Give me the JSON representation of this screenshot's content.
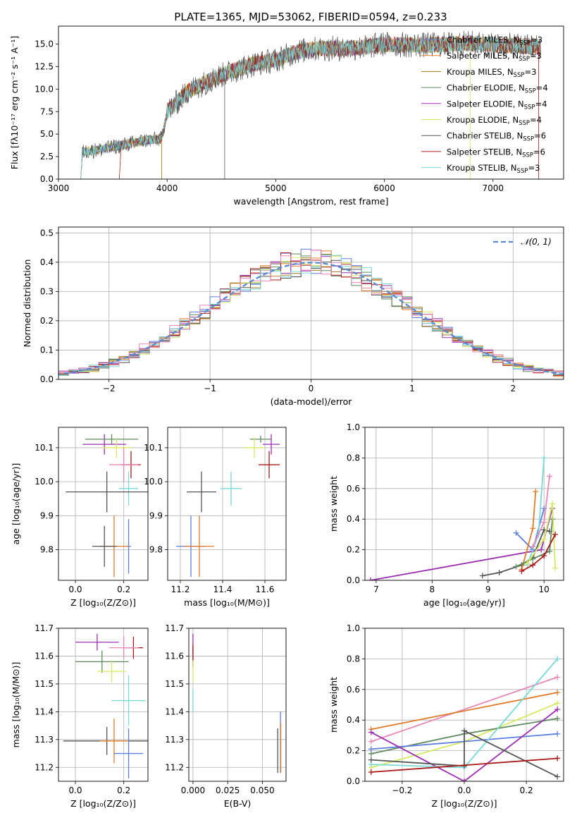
{
  "figure": {
    "title": "PLATE=1365, MJD=53062, FIBERID=0594, z=0.233"
  },
  "colors": {
    "chabrier_miles": "#5f7fe0",
    "salpeter_miles": "#e07b2a",
    "kroupa_miles": "#a0781e",
    "chabrier_elodie": "#5f8a5f",
    "salpeter_elodie": "#9a30b0",
    "kroupa_elodie": "#d8e860",
    "chabrier_stelib": "#555555",
    "salpeter_stelib": "#aa1a1a",
    "kroupa_stelib": "#7ad8d8",
    "pink": "#e888b8",
    "normal": "#5a8ad0"
  },
  "chart_data": [
    {
      "type": "line",
      "name": "spectrum",
      "xlabel": "wavelength [Angstrom, rest frame]",
      "ylabel": "Flux [fλ10⁻¹⁷ erg cm⁻² s⁻¹ A⁻¹]",
      "xlim": [
        3000,
        7650
      ],
      "ylim": [
        0,
        17
      ],
      "xticks": [
        3000,
        4000,
        5000,
        6000,
        7000
      ],
      "xtick_labels": [
        "3000",
        "4000",
        "5000",
        "6000",
        "7000"
      ],
      "yticks": [
        0,
        2.5,
        5,
        7.5,
        10,
        12.5,
        15
      ],
      "ytick_labels": [
        "0.0",
        "2.5",
        "5.0",
        "7.5",
        "10.0",
        "12.5",
        "15.0"
      ],
      "continuum": {
        "x": [
          3210,
          3400,
          3600,
          3800,
          3950,
          4000,
          4200,
          4400,
          4600,
          4800,
          5000,
          5200,
          5400,
          5600,
          5800,
          6000,
          6200,
          6400,
          6600,
          6800,
          7000,
          7200,
          7400
        ],
        "y": [
          3.0,
          3.3,
          3.8,
          4.3,
          4.5,
          7.5,
          9.8,
          11.0,
          12.0,
          12.8,
          13.2,
          14.2,
          14.5,
          14.5,
          14.6,
          15.0,
          14.9,
          14.9,
          15.0,
          15.1,
          14.9,
          14.8,
          14.7
        ]
      },
      "legend": [
        {
          "label": "Chabrier MILES, N",
          "sub": "SSP",
          "suffix": "=3"
        },
        {
          "label": "Salpeter MILES, N",
          "sub": "SSP",
          "suffix": "=3"
        },
        {
          "label": "Kroupa MILES, N",
          "sub": "SSP",
          "suffix": "=3"
        },
        {
          "label": "Chabrier ELODIE, N",
          "sub": "SSP",
          "suffix": "=4"
        },
        {
          "label": "Salpeter ELODIE, N",
          "sub": "SSP",
          "suffix": "=4"
        },
        {
          "label": "Kroupa ELODIE, N",
          "sub": "SSP",
          "suffix": "=4"
        },
        {
          "label": "Chabrier STELIB, N",
          "sub": "SSP",
          "suffix": "=6"
        },
        {
          "label": "Salpeter STELIB, N",
          "sub": "SSP",
          "suffix": "=6"
        },
        {
          "label": "Kroupa STELIB, N",
          "sub": "SSP",
          "suffix": "=3"
        }
      ],
      "legend_placement": "top-right"
    },
    {
      "type": "histogram",
      "name": "residuals",
      "xlabel": "(data-model)/error",
      "ylabel": "Normed distribution",
      "xlim": [
        -2.5,
        2.5
      ],
      "ylim": [
        0,
        0.52
      ],
      "xticks": [
        -2,
        -1,
        0,
        1,
        2
      ],
      "xtick_labels": [
        "−2",
        "−1",
        "0",
        "1",
        "2"
      ],
      "yticks": [
        0,
        0.1,
        0.2,
        0.3,
        0.4,
        0.5
      ],
      "ytick_labels": [
        "0.0",
        "0.1",
        "0.2",
        "0.3",
        "0.4",
        "0.5"
      ],
      "bin_width": 0.1,
      "grid": true,
      "legend_label": "𝒩(0, 1)",
      "legend_placement": "top-right"
    },
    {
      "type": "scatter",
      "name": "age-vs-Z",
      "xlabel": "Z [log₁₀(Z/Z⊙)]",
      "ylabel": "age  [log₁₀(age/yr)]",
      "xlim": [
        -0.07,
        0.3
      ],
      "ylim": [
        9.71,
        10.16
      ],
      "xticks": [
        0,
        0.2
      ],
      "xtick_labels": [
        "0.0",
        "0.2"
      ],
      "yticks": [
        9.8,
        9.9,
        10.0,
        10.1
      ],
      "ytick_labels": [
        "9.8",
        "9.9",
        "10.0",
        "10.1"
      ],
      "points": [
        {
          "x": 0.12,
          "y": 10.11,
          "xerr": 0.09,
          "yerr": 0.03,
          "color": "salpeter_elodie"
        },
        {
          "x": 0.15,
          "y": 10.125,
          "xerr": 0.11,
          "yerr": 0.015,
          "color": "chabrier_elodie"
        },
        {
          "x": 0.17,
          "y": 10.1,
          "xerr": 0.06,
          "yerr": 0.03,
          "color": "kroupa_elodie"
        },
        {
          "x": 0.23,
          "y": 10.05,
          "xerr": 0.04,
          "yerr": 0.04,
          "color": "salpeter_stelib"
        },
        {
          "x": 0.2,
          "y": 10.05,
          "xerr": 0.06,
          "yerr": 0.05,
          "color": "pink"
        },
        {
          "x": 0.22,
          "y": 9.98,
          "xerr": 0.04,
          "yerr": 0.05,
          "color": "kroupa_stelib"
        },
        {
          "x": 0.13,
          "y": 9.97,
          "xerr": 0.17,
          "yerr": 0.06,
          "color": "chabrier_stelib"
        },
        {
          "x": 0.22,
          "y": 9.81,
          "xerr": 0.01,
          "yerr": 0.08,
          "color": "chabrier_miles"
        },
        {
          "x": 0.16,
          "y": 9.81,
          "xerr": 0.06,
          "yerr": 0.09,
          "color": "salpeter_miles"
        },
        {
          "x": 0.12,
          "y": 9.81,
          "xerr": 0.05,
          "yerr": 0.06,
          "color": "chabrier_stelib"
        }
      ]
    },
    {
      "type": "scatter",
      "name": "age-vs-mass",
      "xlabel": "mass [log₁₀(M/M⊙)]",
      "ylabel": "",
      "xlim": [
        11.14,
        11.7
      ],
      "ylim": [
        9.71,
        10.16
      ],
      "xticks": [
        11.2,
        11.4,
        11.6
      ],
      "xtick_labels": [
        "11.2",
        "11.4",
        "11.6"
      ],
      "yticks": [
        9.8,
        9.9,
        10.0,
        10.1
      ],
      "ytick_labels": [
        "9.8",
        "9.9",
        "10.0",
        "10.1"
      ],
      "points": [
        {
          "x": 11.58,
          "y": 10.125,
          "xerr": 0.05,
          "yerr": 0.01,
          "color": "chabrier_elodie"
        },
        {
          "x": 11.63,
          "y": 10.11,
          "xerr": 0.04,
          "yerr": 0.03,
          "color": "salpeter_elodie"
        },
        {
          "x": 11.55,
          "y": 10.1,
          "xerr": 0.05,
          "yerr": 0.03,
          "color": "kroupa_elodie"
        },
        {
          "x": 11.62,
          "y": 10.05,
          "xerr": 0.05,
          "yerr": 0.04,
          "color": "salpeter_stelib"
        },
        {
          "x": 11.44,
          "y": 9.98,
          "xerr": 0.05,
          "yerr": 0.05,
          "color": "kroupa_stelib"
        },
        {
          "x": 11.3,
          "y": 9.97,
          "xerr": 0.07,
          "yerr": 0.06,
          "color": "chabrier_stelib"
        },
        {
          "x": 11.25,
          "y": 9.81,
          "xerr": 0.07,
          "yerr": 0.09,
          "color": "chabrier_miles"
        },
        {
          "x": 11.29,
          "y": 9.81,
          "xerr": 0.07,
          "yerr": 0.09,
          "color": "salpeter_miles"
        }
      ]
    },
    {
      "type": "line",
      "name": "mass-weight-vs-age",
      "xlabel": "age  [log₁₀(age/yr)]",
      "ylabel": "mass weight",
      "xlim": [
        6.8,
        10.35
      ],
      "ylim": [
        0,
        1
      ],
      "xticks": [
        7,
        8,
        9,
        10
      ],
      "xtick_labels": [
        "7",
        "8",
        "9",
        "10"
      ],
      "yticks": [
        0,
        0.2,
        0.4,
        0.6,
        0.8,
        1.0
      ],
      "ytick_labels": [
        "0.0",
        "0.2",
        "0.4",
        "0.6",
        "0.8",
        "1.0"
      ],
      "series": [
        {
          "color": "salpeter_elodie",
          "x": [
            6.9,
            9.95,
            10.15
          ],
          "y": [
            0.0,
            0.2,
            0.47
          ]
        },
        {
          "color": "chabrier_stelib",
          "x": [
            8.9,
            9.2,
            9.6,
            9.8,
            10.0,
            10.1
          ],
          "y": [
            0.03,
            0.05,
            0.1,
            0.15,
            0.33,
            0.32
          ]
        },
        {
          "color": "chabrier_miles",
          "x": [
            9.5,
            9.8,
            10.0
          ],
          "y": [
            0.31,
            0.2,
            0.47
          ]
        },
        {
          "color": "salpeter_miles",
          "x": [
            9.6,
            9.8,
            9.85
          ],
          "y": [
            0.07,
            0.34,
            0.58
          ]
        },
        {
          "color": "kroupa_stelib",
          "x": [
            9.7,
            9.9,
            10.0
          ],
          "y": [
            0.1,
            0.3,
            0.8
          ]
        },
        {
          "color": "pink",
          "x": [
            9.8,
            10.0,
            10.1
          ],
          "y": [
            0.22,
            0.38,
            0.68
          ]
        },
        {
          "color": "chabrier_elodie",
          "x": [
            9.5,
            9.8,
            10.1,
            10.15
          ],
          "y": [
            0.09,
            0.14,
            0.19,
            0.4
          ]
        },
        {
          "color": "kroupa_elodie",
          "x": [
            9.7,
            10.0,
            10.15,
            10.2
          ],
          "y": [
            0.11,
            0.27,
            0.5,
            0.08
          ]
        },
        {
          "color": "salpeter_stelib",
          "x": [
            9.6,
            9.8,
            10.0,
            10.2
          ],
          "y": [
            0.06,
            0.1,
            0.16,
            0.3
          ]
        }
      ]
    },
    {
      "type": "scatter",
      "name": "mass-vs-Z",
      "xlabel": "Z [log₁₀(Z/Z⊙)]",
      "ylabel": "mass [log₁₀(M/M⊙)]",
      "xlim": [
        -0.07,
        0.3
      ],
      "ylim": [
        11.15,
        11.7
      ],
      "xticks": [
        0,
        0.2
      ],
      "xtick_labels": [
        "0.0",
        "0.2"
      ],
      "yticks": [
        11.2,
        11.3,
        11.4,
        11.5,
        11.6,
        11.7
      ],
      "ytick_labels": [
        "11.2",
        "11.3",
        "11.4",
        "11.5",
        "11.6",
        "11.7"
      ],
      "points": [
        {
          "x": 0.09,
          "y": 11.65,
          "xerr": 0.09,
          "yerr": 0.03,
          "color": "salpeter_elodie"
        },
        {
          "x": 0.24,
          "y": 11.63,
          "xerr": 0.04,
          "yerr": 0.04,
          "color": "salpeter_stelib"
        },
        {
          "x": 0.2,
          "y": 11.63,
          "xerr": 0.06,
          "yerr": 0.04,
          "color": "pink"
        },
        {
          "x": 0.11,
          "y": 11.58,
          "xerr": 0.11,
          "yerr": 0.04,
          "color": "chabrier_elodie"
        },
        {
          "x": 0.15,
          "y": 11.545,
          "xerr": 0.06,
          "yerr": 0.04,
          "color": "kroupa_elodie"
        },
        {
          "x": 0.22,
          "y": 11.44,
          "xerr": 0.07,
          "yerr": 0.09,
          "color": "kroupa_stelib"
        },
        {
          "x": 0.13,
          "y": 11.295,
          "xerr": 0.18,
          "yerr": 0.05,
          "color": "chabrier_stelib"
        },
        {
          "x": 0.16,
          "y": 11.295,
          "xerr": 0.06,
          "yerr": 0.08,
          "color": "salpeter_miles"
        },
        {
          "x": 0.22,
          "y": 11.25,
          "xerr": 0.06,
          "yerr": 0.09,
          "color": "chabrier_miles"
        }
      ]
    },
    {
      "type": "scatter",
      "name": "mass-vs-ebv",
      "xlabel": "E(B-V)",
      "ylabel": "",
      "xlim": [
        -0.003,
        0.067
      ],
      "ylim": [
        11.15,
        11.7
      ],
      "xticks": [
        0,
        0.025,
        0.05
      ],
      "xtick_labels": [
        "0.000",
        "0.025",
        "0.050"
      ],
      "yticks": [
        11.2,
        11.3,
        11.4,
        11.5,
        11.6,
        11.7
      ],
      "ytick_labels": [
        "11.2",
        "11.3",
        "11.4",
        "11.5",
        "11.6",
        "11.7"
      ],
      "points": [
        {
          "x": 0.0,
          "y": 11.63,
          "xerr": 0,
          "yerr": 0.05,
          "color": "salpeter_elodie"
        },
        {
          "x": 0.0,
          "y": 11.6,
          "xerr": 0,
          "yerr": 0.04,
          "color": "salpeter_stelib"
        },
        {
          "x": 0.0,
          "y": 11.545,
          "xerr": 0,
          "yerr": 0.04,
          "color": "kroupa_elodie"
        },
        {
          "x": 0.0,
          "y": 11.44,
          "xerr": 0,
          "yerr": 0.04,
          "color": "kroupa_stelib"
        },
        {
          "x": 0.061,
          "y": 11.26,
          "xerr": 0,
          "yerr": 0.08,
          "color": "chabrier_stelib"
        },
        {
          "x": 0.063,
          "y": 11.29,
          "xerr": 0,
          "yerr": 0.11,
          "color": "chabrier_miles"
        },
        {
          "x": 0.0632,
          "y": 11.27,
          "xerr": 0,
          "yerr": 0.09,
          "color": "salpeter_miles"
        }
      ]
    },
    {
      "type": "line",
      "name": "mass-weight-vs-Z",
      "xlabel": "Z [log₁₀(Z/Z⊙)]",
      "ylabel": "mass weight",
      "xlim": [
        -0.32,
        0.32
      ],
      "ylim": [
        0,
        1
      ],
      "xticks": [
        -0.2,
        0,
        0.2
      ],
      "xtick_labels": [
        "−0.2",
        "0.0",
        "0.2"
      ],
      "yticks": [
        0,
        0.2,
        0.4,
        0.6,
        0.8,
        1.0
      ],
      "ytick_labels": [
        "0.0",
        "0.2",
        "0.4",
        "0.6",
        "0.8",
        "1.0"
      ],
      "series": [
        {
          "color": "pink",
          "x": [
            -0.3,
            0.3
          ],
          "y": [
            0.26,
            0.68
          ]
        },
        {
          "color": "salpeter_miles",
          "x": [
            -0.3,
            0.3
          ],
          "y": [
            0.34,
            0.58
          ]
        },
        {
          "color": "kroupa_elodie",
          "x": [
            -0.3,
            0.0,
            0.3
          ],
          "y": [
            0.09,
            0.26,
            0.51
          ]
        },
        {
          "color": "chabrier_elodie",
          "x": [
            -0.3,
            0.0,
            0.3
          ],
          "y": [
            0.18,
            0.31,
            0.41
          ]
        },
        {
          "color": "chabrier_miles",
          "x": [
            -0.3,
            0.3
          ],
          "y": [
            0.21,
            0.31
          ]
        },
        {
          "color": "salpeter_elodie",
          "x": [
            -0.3,
            0.0,
            0.3
          ],
          "y": [
            0.32,
            0.0,
            0.47
          ]
        },
        {
          "color": "kroupa_stelib",
          "x": [
            -0.3,
            0.0,
            0.3
          ],
          "y": [
            0.11,
            0.09,
            0.8
          ]
        },
        {
          "color": "chabrier_stelib",
          "x": [
            -0.3,
            0.0,
            0.0,
            0.3
          ],
          "y": [
            0.14,
            0.1,
            0.33,
            0.03
          ]
        },
        {
          "color": "salpeter_stelib",
          "x": [
            -0.3,
            0.3
          ],
          "y": [
            0.06,
            0.15
          ]
        }
      ]
    }
  ]
}
